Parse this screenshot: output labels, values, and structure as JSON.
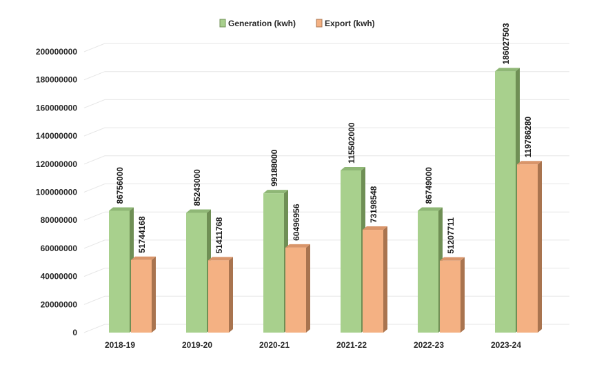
{
  "chart_data": {
    "type": "bar",
    "categories": [
      "2018-19",
      "2019-20",
      "2020-21",
      "2021-22",
      "2022-23",
      "2023-24"
    ],
    "series": [
      {
        "name": "Generation (kwh)",
        "values": [
          86756000,
          85243000,
          99188000,
          115502000,
          86749000,
          186027503
        ]
      },
      {
        "name": "Export (kwh)",
        "values": [
          51744168,
          51411768,
          60496956,
          73198548,
          51207711,
          119786280
        ]
      }
    ],
    "data_labels": [
      [
        "86756000",
        "85243000",
        "99188000",
        "115502000",
        "86749000",
        "186027503"
      ],
      [
        "51744168",
        "51411768",
        "60496956",
        "73198548",
        "51207711",
        "119786280"
      ]
    ],
    "y_ticks": [
      "0",
      "20000000",
      "40000000",
      "60000000",
      "80000000",
      "100000000",
      "120000000",
      "140000000",
      "160000000",
      "180000000",
      "200000000"
    ],
    "ylim": [
      0,
      200000000
    ],
    "grid": true,
    "legend_position": "top-center",
    "colors": {
      "generation_front": "#a8d08d",
      "generation_side": "#6f8f55",
      "generation_top": "#8fb776",
      "export_front": "#f4b183",
      "export_side": "#a9744f",
      "export_top": "#d9956a",
      "gridline": "#e6e6e6"
    }
  }
}
